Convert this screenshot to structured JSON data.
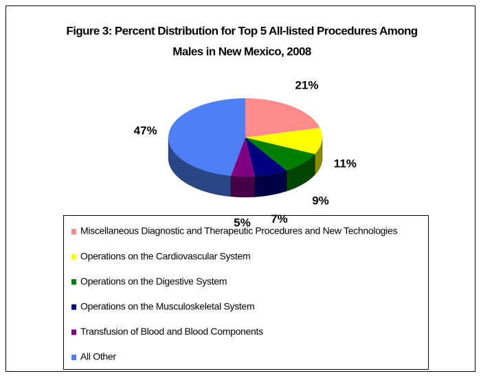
{
  "chart_data": {
    "type": "pie3d",
    "title": [
      "Figure 3: Percent Distribution for Top 5 All-listed Procedures Among",
      "Males in New Mexico, 2008"
    ],
    "categories": [
      "Miscellaneous Diagnostic and Therapeutic Procedures and New Technologies",
      "Operations on the Cardiovascular System",
      "Operations on the Digestive System",
      "Operations on the Musculoskeletal System",
      "Transfusion of Blood and Blood Components",
      "All Other"
    ],
    "values": [
      21,
      11,
      9,
      7,
      5,
      47
    ],
    "value_labels": [
      "21%",
      "11%",
      "9%",
      "7%",
      "5%",
      "47%"
    ],
    "colors": [
      "#ff8a8a",
      "#ffff00",
      "#008000",
      "#000080",
      "#800080",
      "#4d7ff5"
    ],
    "legend": "bottom"
  }
}
